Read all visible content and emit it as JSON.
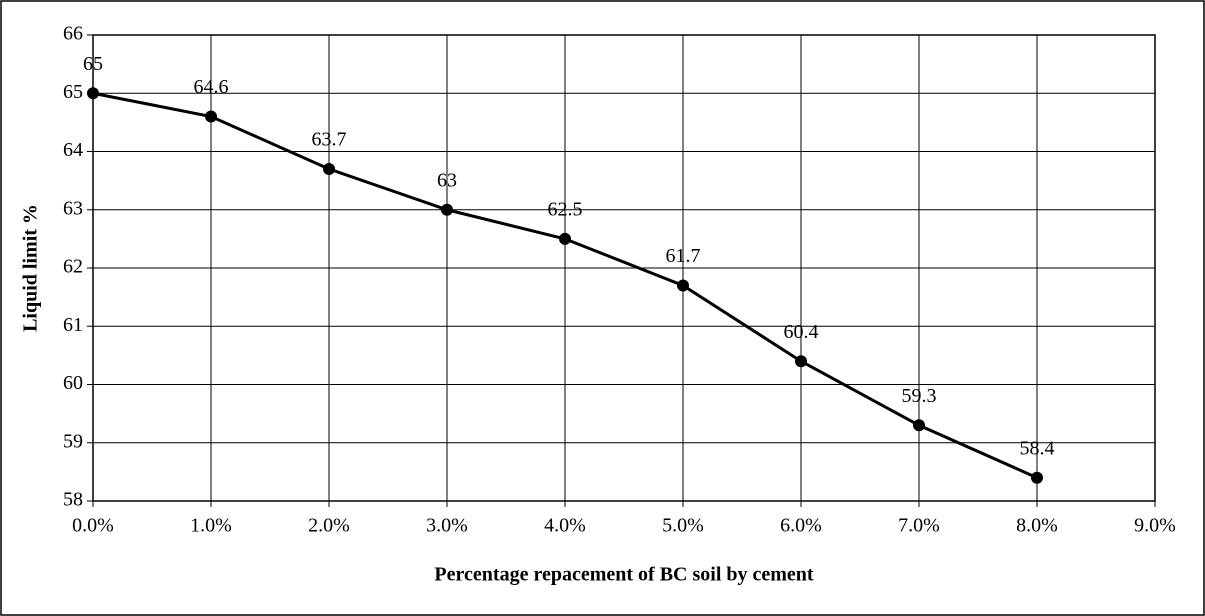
{
  "chart_data": {
    "type": "line",
    "xlabel": "Percentage repacement of BC soil by cement",
    "ylabel": "Liquid limit %",
    "x": [
      0,
      1,
      2,
      3,
      4,
      5,
      6,
      7,
      8
    ],
    "values": [
      65,
      64.6,
      63.7,
      63,
      62.5,
      61.7,
      60.4,
      59.3,
      58.4
    ],
    "color": "#000000",
    "xlim": [
      0,
      9
    ],
    "ylim": [
      58,
      66
    ],
    "xticks": [
      {
        "value": 0,
        "label": "0.0%"
      },
      {
        "value": 1,
        "label": "1.0%"
      },
      {
        "value": 2,
        "label": "2.0%"
      },
      {
        "value": 3,
        "label": "3.0%"
      },
      {
        "value": 4,
        "label": "4.0%"
      },
      {
        "value": 5,
        "label": "5.0%"
      },
      {
        "value": 6,
        "label": "6.0%"
      },
      {
        "value": 7,
        "label": "7.0%"
      },
      {
        "value": 8,
        "label": "8.0%"
      },
      {
        "value": 9,
        "label": "9.0%"
      }
    ],
    "yticks": [
      58,
      59,
      60,
      61,
      62,
      63,
      64,
      65,
      66
    ],
    "grid": true
  }
}
